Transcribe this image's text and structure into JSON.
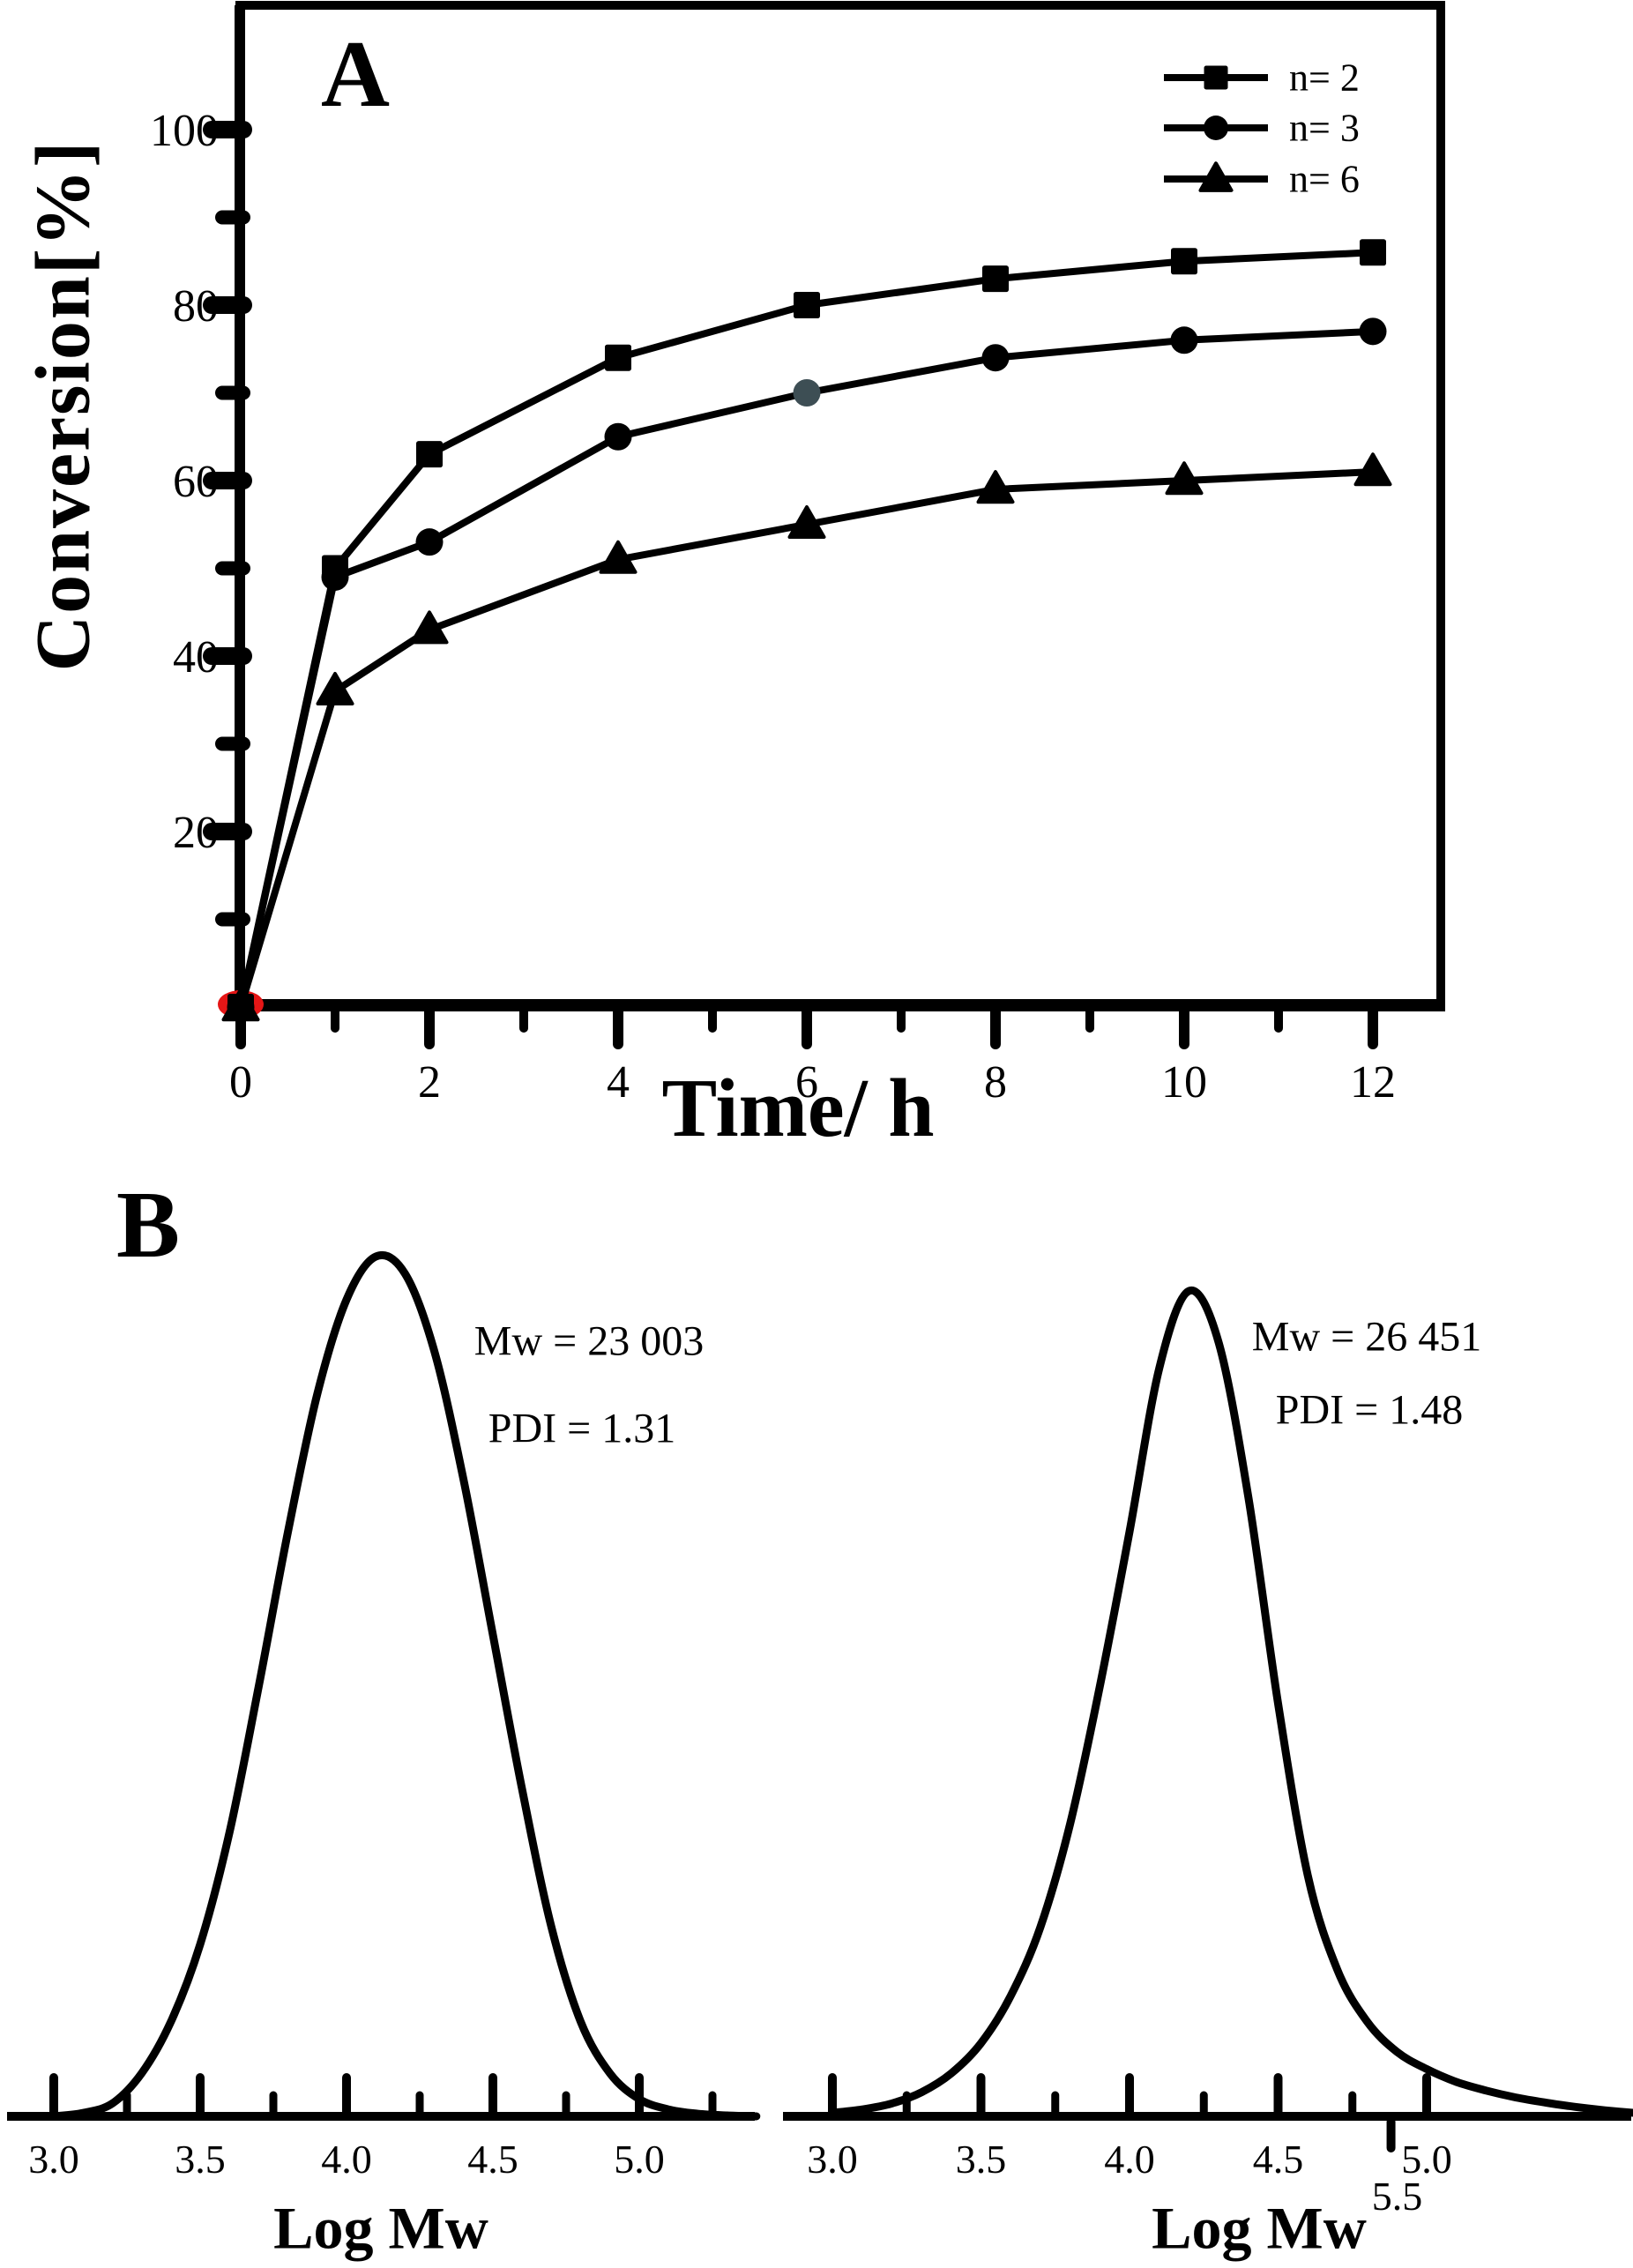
{
  "figure": {
    "background": "#ffffff",
    "ink": "#000000"
  },
  "panels": {
    "a": {
      "label": "A"
    },
    "b": {
      "label": "B"
    }
  },
  "chart_data": [
    {
      "panel": "A",
      "type": "line",
      "title": "",
      "xlabel": "Time/ h",
      "ylabel": "Conversion[%]",
      "xlim": [
        0,
        12.7
      ],
      "ylim": [
        0,
        114
      ],
      "grid": false,
      "legend_position": "top-right-inside",
      "x_major_ticks": [
        0,
        2,
        4,
        6,
        8,
        10,
        12
      ],
      "x_major_tick_labels": [
        "0",
        "2",
        "4",
        "6",
        "8",
        "10",
        "12"
      ],
      "x_minor_ticks": [
        1,
        3,
        5,
        7,
        9,
        11
      ],
      "y_major_ticks": [
        20,
        40,
        60,
        80,
        100
      ],
      "y_major_tick_labels": [
        "20",
        "40",
        "60",
        "80",
        "100"
      ],
      "y_minor_ticks": [
        10,
        30,
        50,
        70,
        90
      ],
      "origin_highlight": {
        "x": 0,
        "y": 0,
        "color": "#e51616"
      },
      "series": [
        {
          "name": "n= 2",
          "marker": "square",
          "color": "#000000",
          "x": [
            0,
            1,
            2,
            4,
            6,
            8,
            10,
            12
          ],
          "y": [
            0,
            50,
            63,
            74,
            80,
            83,
            85,
            86
          ]
        },
        {
          "name": "n= 3",
          "marker": "circle",
          "color": "#000000",
          "x": [
            0,
            1,
            2,
            4,
            6,
            8,
            10,
            12
          ],
          "y": [
            0,
            49,
            53,
            65,
            70,
            74,
            76,
            77
          ],
          "muted_point": {
            "x": 6,
            "color": "#3d4e54"
          }
        },
        {
          "name": "n= 6",
          "marker": "triangle",
          "color": "#000000",
          "x": [
            0,
            1,
            2,
            4,
            6,
            8,
            10,
            12
          ],
          "y": [
            0,
            36,
            43,
            51,
            55,
            59,
            60,
            61
          ]
        }
      ]
    },
    {
      "panel": "B-left",
      "type": "line",
      "xlabel": "Log Mw",
      "annotations": [
        "Mw = 23 003",
        "PDI = 1.31"
      ],
      "x_major_ticks": [
        3.0,
        3.5,
        4.0,
        4.5,
        5.0
      ],
      "x_major_tick_labels": [
        "3.0",
        "3.5",
        "4.0",
        "4.5",
        "5.0"
      ],
      "x_minor_ticks": [
        3.25,
        3.75,
        4.25,
        4.75,
        5.25
      ],
      "curve": {
        "x": [
          3.0,
          3.1,
          3.2,
          3.3,
          3.4,
          3.5,
          3.6,
          3.7,
          3.8,
          3.9,
          4.0,
          4.1,
          4.2,
          4.3,
          4.4,
          4.5,
          4.6,
          4.7,
          4.8,
          4.9,
          5.0,
          5.1,
          5.2,
          5.3,
          5.4
        ],
        "y": [
          0,
          0.004,
          0.015,
          0.05,
          0.11,
          0.2,
          0.33,
          0.5,
          0.68,
          0.84,
          0.95,
          1.0,
          0.98,
          0.89,
          0.74,
          0.56,
          0.38,
          0.22,
          0.11,
          0.05,
          0.02,
          0.008,
          0.003,
          0.001,
          0
        ]
      }
    },
    {
      "panel": "B-right",
      "type": "line",
      "xlabel": "Log Mw",
      "annotations": [
        "Mw = 26 451",
        "PDI = 1.48"
      ],
      "x_major_ticks": [
        3.0,
        3.5,
        4.0,
        4.5,
        5.0
      ],
      "x_major_tick_labels": [
        "3.0",
        "3.5",
        "4.0",
        "4.5",
        "5.0"
      ],
      "x_minor_ticks": [
        3.25,
        3.75,
        4.25,
        4.75
      ],
      "extra_tick": {
        "value": 4.88,
        "label": "5.5",
        "below_axis": true
      },
      "curve": {
        "x": [
          3.0,
          3.1,
          3.2,
          3.3,
          3.4,
          3.5,
          3.6,
          3.7,
          3.8,
          3.9,
          4.0,
          4.1,
          4.2,
          4.3,
          4.4,
          4.5,
          4.6,
          4.7,
          4.8,
          4.9,
          5.0,
          5.1,
          5.2,
          5.3,
          5.4,
          5.5,
          5.6,
          5.7,
          5.8
        ],
        "y": [
          0.004,
          0.008,
          0.015,
          0.028,
          0.05,
          0.085,
          0.14,
          0.22,
          0.34,
          0.5,
          0.68,
          0.87,
          0.96,
          0.9,
          0.72,
          0.48,
          0.28,
          0.17,
          0.11,
          0.075,
          0.055,
          0.04,
          0.03,
          0.022,
          0.016,
          0.011,
          0.007,
          0.004,
          0.002
        ]
      }
    }
  ]
}
